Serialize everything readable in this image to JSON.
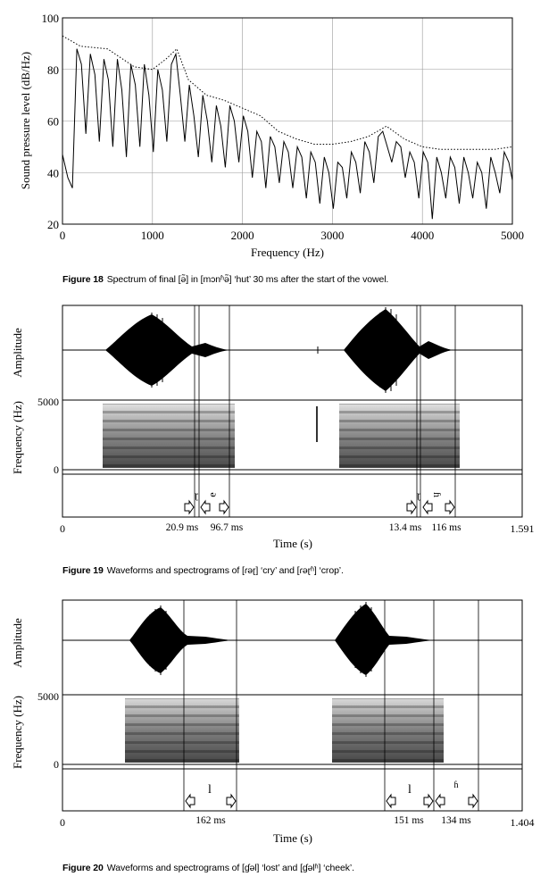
{
  "figure18": {
    "chart_data": {
      "type": "line",
      "title": "",
      "xlabel": "Frequency (Hz)",
      "ylabel": "Sound pressure level (dB/Hz)",
      "xlim": [
        0,
        5000
      ],
      "ylim": [
        20,
        100
      ],
      "xticks": [
        "0",
        "1000",
        "2000",
        "3000",
        "4000",
        "5000"
      ],
      "yticks": [
        "20",
        "40",
        "60",
        "80",
        "100"
      ],
      "grid": true,
      "series": [
        {
          "name": "spectrum",
          "style": "solid",
          "x": [
            0,
            60,
            110,
            160,
            210,
            260,
            310,
            360,
            410,
            460,
            510,
            560,
            610,
            660,
            710,
            760,
            810,
            860,
            910,
            960,
            1010,
            1060,
            1110,
            1160,
            1210,
            1260,
            1310,
            1360,
            1410,
            1460,
            1510,
            1560,
            1610,
            1660,
            1710,
            1760,
            1810,
            1860,
            1910,
            1960,
            2010,
            2060,
            2110,
            2160,
            2210,
            2260,
            2310,
            2360,
            2410,
            2460,
            2510,
            2560,
            2610,
            2660,
            2710,
            2760,
            2810,
            2860,
            2910,
            2960,
            3010,
            3060,
            3110,
            3160,
            3210,
            3260,
            3310,
            3360,
            3410,
            3460,
            3510,
            3560,
            3610,
            3660,
            3710,
            3760,
            3810,
            3860,
            3910,
            3960,
            4010,
            4060,
            4110,
            4160,
            4210,
            4260,
            4310,
            4360,
            4410,
            4460,
            4510,
            4560,
            4610,
            4660,
            4710,
            4760,
            4810,
            4860,
            4910,
            4960,
            5000
          ],
          "y": [
            47,
            38,
            34,
            88,
            82,
            55,
            86,
            78,
            52,
            84,
            76,
            50,
            84,
            72,
            46,
            82,
            74,
            50,
            82,
            70,
            48,
            80,
            72,
            52,
            82,
            86,
            70,
            52,
            74,
            62,
            46,
            70,
            60,
            44,
            66,
            58,
            42,
            66,
            60,
            44,
            62,
            56,
            38,
            56,
            52,
            34,
            54,
            50,
            36,
            52,
            48,
            34,
            50,
            46,
            30,
            48,
            44,
            28,
            46,
            40,
            26,
            44,
            42,
            30,
            48,
            44,
            32,
            52,
            48,
            36,
            54,
            56,
            50,
            44,
            52,
            50,
            38,
            48,
            44,
            30,
            48,
            44,
            22,
            46,
            40,
            30,
            46,
            42,
            28,
            46,
            40,
            30,
            44,
            40,
            26,
            46,
            40,
            32,
            48,
            44,
            37
          ]
        },
        {
          "name": "envelope",
          "style": "dotted",
          "x": [
            0,
            200,
            500,
            800,
            1000,
            1150,
            1270,
            1400,
            1600,
            1800,
            2000,
            2200,
            2400,
            2600,
            2800,
            3000,
            3200,
            3400,
            3600,
            3800,
            4000,
            4200,
            4400,
            4600,
            4800,
            5000
          ],
          "y": [
            93,
            89,
            88,
            81,
            80,
            84,
            88,
            76,
            70,
            68,
            65,
            62,
            56,
            53,
            51,
            51,
            52,
            54,
            58,
            53,
            50,
            49,
            49,
            49,
            49,
            50
          ]
        }
      ]
    },
    "caption_label": "Figure 18",
    "caption_text": "Spectrum of final [ə̃] in [mɔnʱə̃] ‘hut’ 30 ms after the start of the vowel."
  },
  "figure19": {
    "amplitude_label": "Amplitude",
    "frequency_label": "Frequency (Hz)",
    "freq_top": "5000",
    "freq_bottom": "0",
    "time_start": "0",
    "time_end": "1.591",
    "time_label": "Time (s)",
    "segments": [
      "ɽ",
      "ə",
      "ɽ",
      "ɦ"
    ],
    "durations": [
      "20.9 ms",
      "96.7 ms",
      "13.4 ms",
      "116 ms"
    ],
    "caption_label": "Figure 19",
    "caption_text": "Waveforms and spectrograms of [ɾəɽ] ‘cry’ and [ɾəɽʱ] ‘crop’."
  },
  "figure20": {
    "amplitude_label": "Amplitude",
    "frequency_label": "Frequency (Hz)",
    "freq_top": "5000",
    "freq_bottom": "0",
    "time_start": "0",
    "time_end": "1.404",
    "time_label": "Time (s)",
    "segments": [
      "l",
      "l",
      "ɦ"
    ],
    "durations": [
      "162 ms",
      "151 ms",
      "134 ms"
    ],
    "caption_label": "Figure 20",
    "caption_text": "Waveforms and spectrograms of [ɠəl] ‘lost’ and [ɠəlʱ] ‘cheek’."
  }
}
